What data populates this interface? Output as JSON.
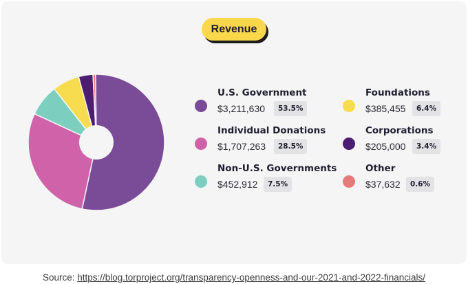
{
  "title_pill": "Revenue",
  "source": {
    "prefix": "Source: ",
    "link": "https://blog.torproject.org/transparency-openness-and-our-2021-and-2022-financials/"
  },
  "colors": {
    "card_background": "#f5f5f6",
    "pill": "#fbd84b"
  },
  "chart_data": {
    "type": "pie",
    "donut": true,
    "start_angle_deg": 90.7,
    "direction": "clockwise",
    "slices": [
      {
        "name": "U.S. Government",
        "amount": "$3,211,630",
        "percent_label": "53.5%",
        "value": 53.5,
        "color": "#7a4b97"
      },
      {
        "name": "Individual Donations",
        "amount": "$1,707,263",
        "percent_label": "28.5%",
        "value": 28.5,
        "color": "#cf62a8"
      },
      {
        "name": "Non-U.S. Governments",
        "amount": "$452,912",
        "percent_label": "7.5%",
        "value": 7.5,
        "color": "#7ccfbf"
      },
      {
        "name": "Foundations",
        "amount": "$385,455",
        "percent_label": "6.4%",
        "value": 6.4,
        "color": "#f8dc4f"
      },
      {
        "name": "Corporations",
        "amount": "$205,000",
        "percent_label": "3.4%",
        "value": 3.4,
        "color": "#4d1d6f"
      },
      {
        "name": "Other",
        "amount": "$37,632",
        "percent_label": "0.6%",
        "value": 0.6,
        "color": "#e77a7a"
      }
    ]
  }
}
